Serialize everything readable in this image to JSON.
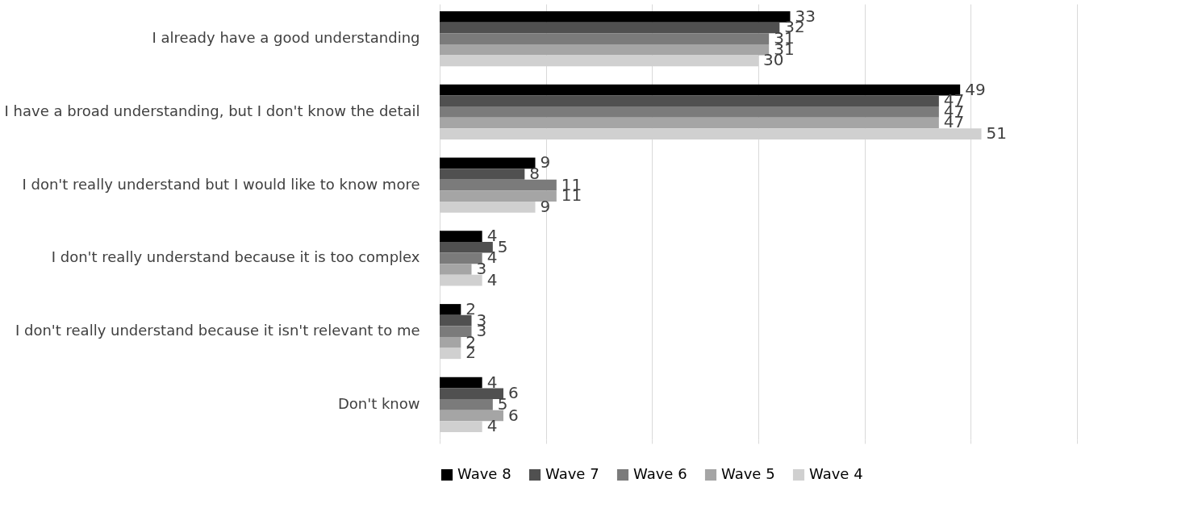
{
  "chart_data": {
    "type": "bar",
    "orientation": "horizontal",
    "categories": [
      "I already have a good understanding",
      "I have a broad understanding, but I don't know the detail",
      "I don't really understand but I would like to know more",
      "I don't really understand because it is too complex",
      "I don't really understand because it isn't relevant to me",
      "Don't know"
    ],
    "series": [
      {
        "name": "Wave 8",
        "color": "#000000",
        "values": [
          33,
          49,
          9,
          4,
          2,
          4
        ]
      },
      {
        "name": "Wave 7",
        "color": "#505050",
        "values": [
          32,
          47,
          8,
          5,
          3,
          6
        ]
      },
      {
        "name": "Wave 6",
        "color": "#7b7b7b",
        "values": [
          31,
          47,
          11,
          4,
          3,
          5
        ]
      },
      {
        "name": "Wave 5",
        "color": "#a5a5a5",
        "values": [
          31,
          47,
          11,
          3,
          2,
          6
        ]
      },
      {
        "name": "Wave 4",
        "color": "#d0d0d0",
        "values": [
          30,
          51,
          9,
          4,
          2,
          4
        ]
      }
    ],
    "xlim": [
      0,
      60
    ],
    "xticks": [
      {
        "value": 0,
        "label": null
      },
      {
        "value": 10,
        "label": null
      },
      {
        "value": 20,
        "label": null
      },
      {
        "value": 30,
        "label": null
      },
      {
        "value": 40,
        "label": null
      },
      {
        "value": 50,
        "label": null
      },
      {
        "value": 60,
        "label": null
      }
    ],
    "grid": "x",
    "legend": "bottom",
    "data_labels": true
  }
}
